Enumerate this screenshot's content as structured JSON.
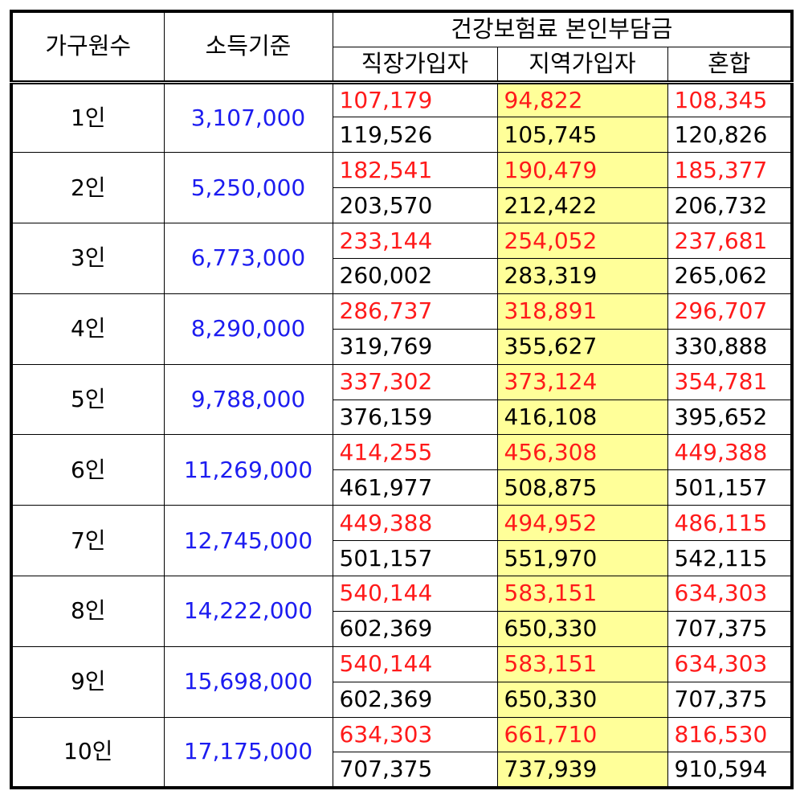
{
  "headers": {
    "household": "가구원수",
    "income": "소득기준",
    "premium_group": "건강보험료 본인부담금",
    "workplace": "직장가입자",
    "regional": "지역가입자",
    "mixed": "혼합"
  },
  "rows": [
    {
      "size": "1인",
      "income": "3,107,000",
      "top": {
        "workplace": "107,179",
        "regional": "94,822",
        "mixed": "108,345"
      },
      "bottom": {
        "workplace": "119,526",
        "regional": "105,745",
        "mixed": "120,826"
      }
    },
    {
      "size": "2인",
      "income": "5,250,000",
      "top": {
        "workplace": "182,541",
        "regional": "190,479",
        "mixed": "185,377"
      },
      "bottom": {
        "workplace": "203,570",
        "regional": "212,422",
        "mixed": "206,732"
      }
    },
    {
      "size": "3인",
      "income": "6,773,000",
      "top": {
        "workplace": "233,144",
        "regional": "254,052",
        "mixed": "237,681"
      },
      "bottom": {
        "workplace": "260,002",
        "regional": "283,319",
        "mixed": "265,062"
      }
    },
    {
      "size": "4인",
      "income": "8,290,000",
      "top": {
        "workplace": "286,737",
        "regional": "318,891",
        "mixed": "296,707"
      },
      "bottom": {
        "workplace": "319,769",
        "regional": "355,627",
        "mixed": "330,888"
      }
    },
    {
      "size": "5인",
      "income": "9,788,000",
      "top": {
        "workplace": "337,302",
        "regional": "373,124",
        "mixed": "354,781"
      },
      "bottom": {
        "workplace": "376,159",
        "regional": "416,108",
        "mixed": "395,652"
      }
    },
    {
      "size": "6인",
      "income": "11,269,000",
      "top": {
        "workplace": "414,255",
        "regional": "456,308",
        "mixed": "449,388"
      },
      "bottom": {
        "workplace": "461,977",
        "regional": "508,875",
        "mixed": "501,157"
      }
    },
    {
      "size": "7인",
      "income": "12,745,000",
      "top": {
        "workplace": "449,388",
        "regional": "494,952",
        "mixed": "486,115"
      },
      "bottom": {
        "workplace": "501,157",
        "regional": "551,970",
        "mixed": "542,115"
      }
    },
    {
      "size": "8인",
      "income": "14,222,000",
      "top": {
        "workplace": "540,144",
        "regional": "583,151",
        "mixed": "634,303"
      },
      "bottom": {
        "workplace": "602,369",
        "regional": "650,330",
        "mixed": "707,375"
      }
    },
    {
      "size": "9인",
      "income": "15,698,000",
      "top": {
        "workplace": "540,144",
        "regional": "583,151",
        "mixed": "634,303"
      },
      "bottom": {
        "workplace": "602,369",
        "regional": "650,330",
        "mixed": "707,375"
      }
    },
    {
      "size": "10인",
      "income": "17,175,000",
      "top": {
        "workplace": "634,303",
        "regional": "661,710",
        "mixed": "816,530"
      },
      "bottom": {
        "workplace": "707,375",
        "regional": "737,939",
        "mixed": "910,594"
      }
    }
  ],
  "colors": {
    "income_text": "#1c1cf0",
    "highlight_red": "#ff1a1a",
    "regional_column_bg": "#ffff99"
  }
}
